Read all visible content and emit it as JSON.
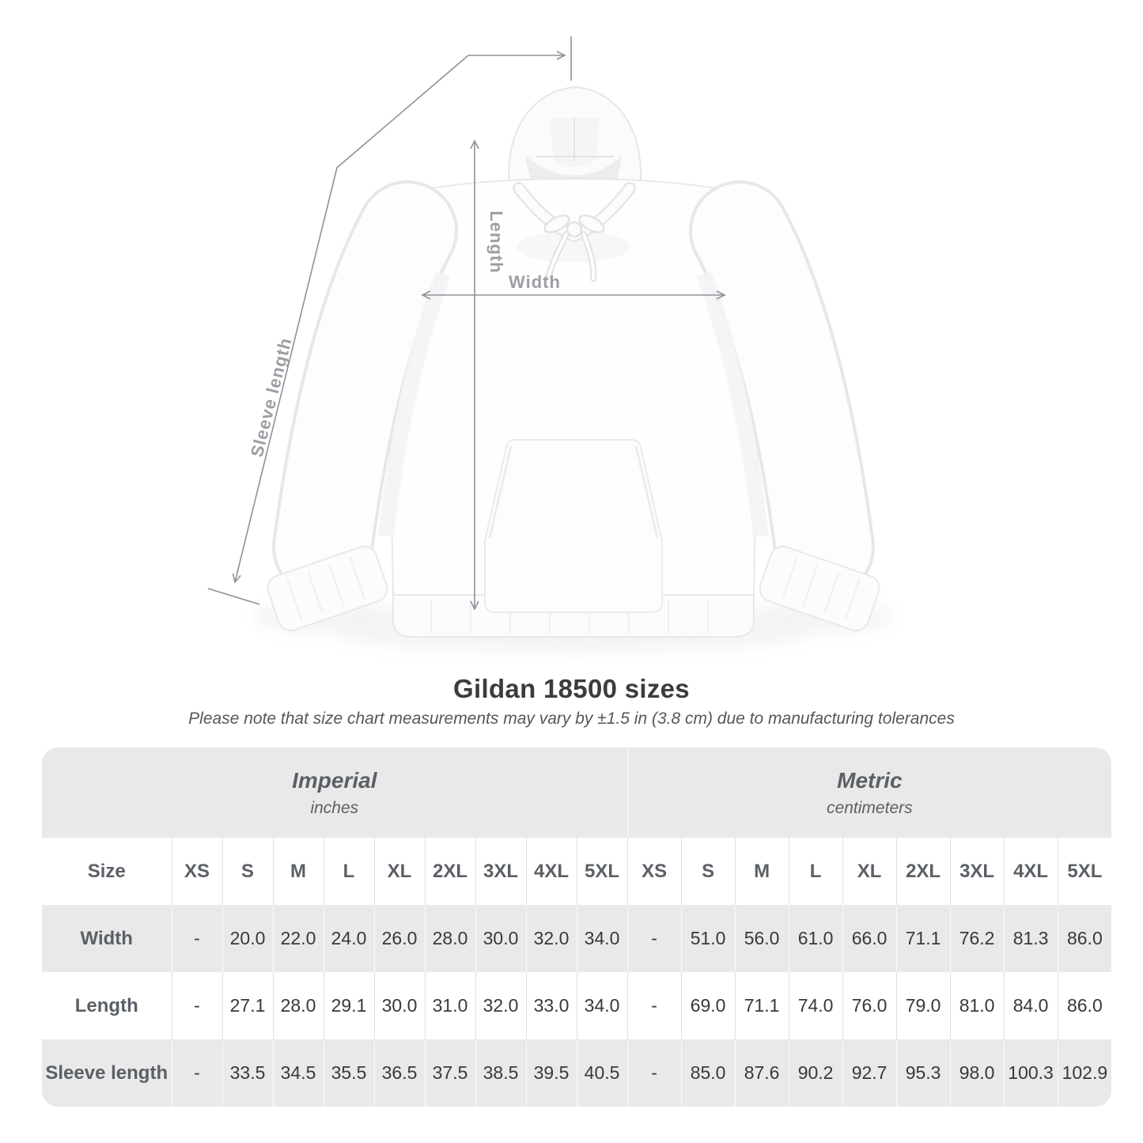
{
  "page": {
    "title": "Gildan 18500 sizes",
    "subtitle": "Please note that size chart measurements may vary by ±1.5 in (3.8 cm) due to manufacturing tolerances"
  },
  "diagram": {
    "product": "hooded-sweatshirt-flat-lay",
    "labels": {
      "length": "Length",
      "width": "Width",
      "sleeve": "Sleeve length"
    }
  },
  "chart_data": {
    "type": "table",
    "title": "Gildan 18500 sizes",
    "corner_label": "Size",
    "unit_groups": [
      {
        "label": "Imperial",
        "units": "inches"
      },
      {
        "label": "Metric",
        "units": "centimeters"
      }
    ],
    "sizes": [
      "XS",
      "S",
      "M",
      "L",
      "XL",
      "2XL",
      "3XL",
      "4XL",
      "5XL"
    ],
    "rows": [
      {
        "label": "Width",
        "imperial": [
          "-",
          "20.0",
          "22.0",
          "24.0",
          "26.0",
          "28.0",
          "30.0",
          "32.0",
          "34.0"
        ],
        "metric": [
          "-",
          "51.0",
          "56.0",
          "61.0",
          "66.0",
          "71.1",
          "76.2",
          "81.3",
          "86.0"
        ]
      },
      {
        "label": "Length",
        "imperial": [
          "-",
          "27.1",
          "28.0",
          "29.1",
          "30.0",
          "31.0",
          "32.0",
          "33.0",
          "34.0"
        ],
        "metric": [
          "-",
          "69.0",
          "71.1",
          "74.0",
          "76.0",
          "79.0",
          "81.0",
          "84.0",
          "86.0"
        ]
      },
      {
        "label": "Sleeve length",
        "imperial": [
          "-",
          "33.5",
          "34.5",
          "35.5",
          "36.5",
          "37.5",
          "38.5",
          "39.5",
          "40.5"
        ],
        "metric": [
          "-",
          "85.0",
          "87.6",
          "90.2",
          "92.7",
          "95.3",
          "98.0",
          "100.3",
          "102.9"
        ]
      }
    ]
  },
  "colors": {
    "band_gray": "#e9e9ea",
    "row_stripe_gray": "#e9e9ea",
    "header_text": "#5b6066",
    "value_text": "#37393c",
    "title_text": "#3a3c3e",
    "subtitle_text": "#54575b",
    "measure_line": "#8e9298",
    "measure_label": "#9b9fa4",
    "separator": "#e0e0e0"
  }
}
